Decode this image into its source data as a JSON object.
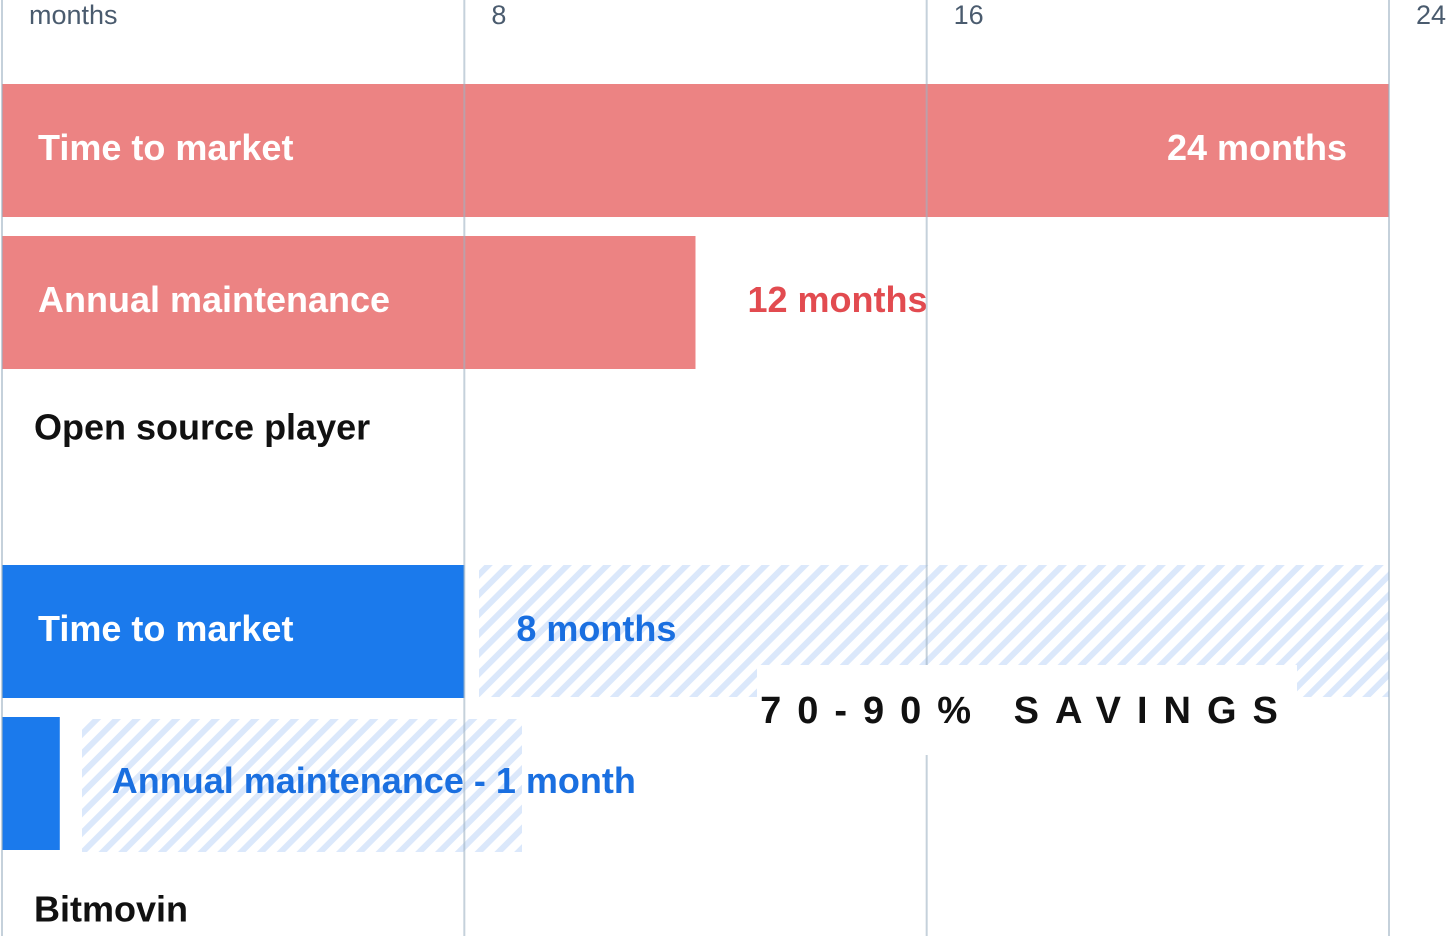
{
  "chart_data": {
    "type": "bar",
    "orientation": "horizontal",
    "xlim": [
      0,
      24
    ],
    "xticks": [
      {
        "value": 0,
        "label": "months"
      },
      8,
      16,
      24
    ],
    "grid": true,
    "annotation": "70-90% SAVINGS",
    "groups": [
      {
        "name": "Open source player",
        "color": "#ec8383",
        "label_color": "#e24b50",
        "categories": [
          "Time to market",
          "Annual maintenance"
        ],
        "values": [
          24,
          12
        ],
        "value_labels": [
          "24 months",
          "12 months"
        ]
      },
      {
        "name": "Bitmovin",
        "color": "#1b7aec",
        "label_color": "#1a6fe0",
        "categories": [
          "Time to market",
          null
        ],
        "values": [
          8,
          1
        ],
        "value_labels": [
          "8 months",
          "Annual maintenance - 1 month"
        ]
      }
    ]
  }
}
